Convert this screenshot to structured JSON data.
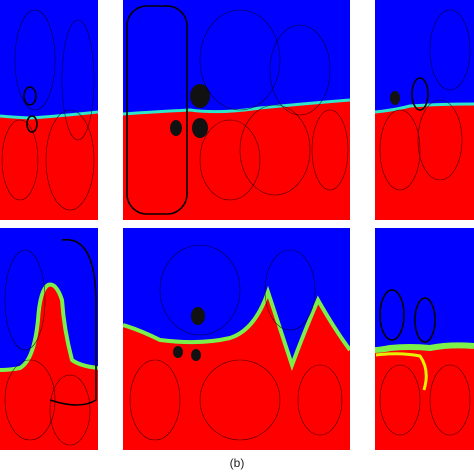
{
  "caption": "(b)"
}
